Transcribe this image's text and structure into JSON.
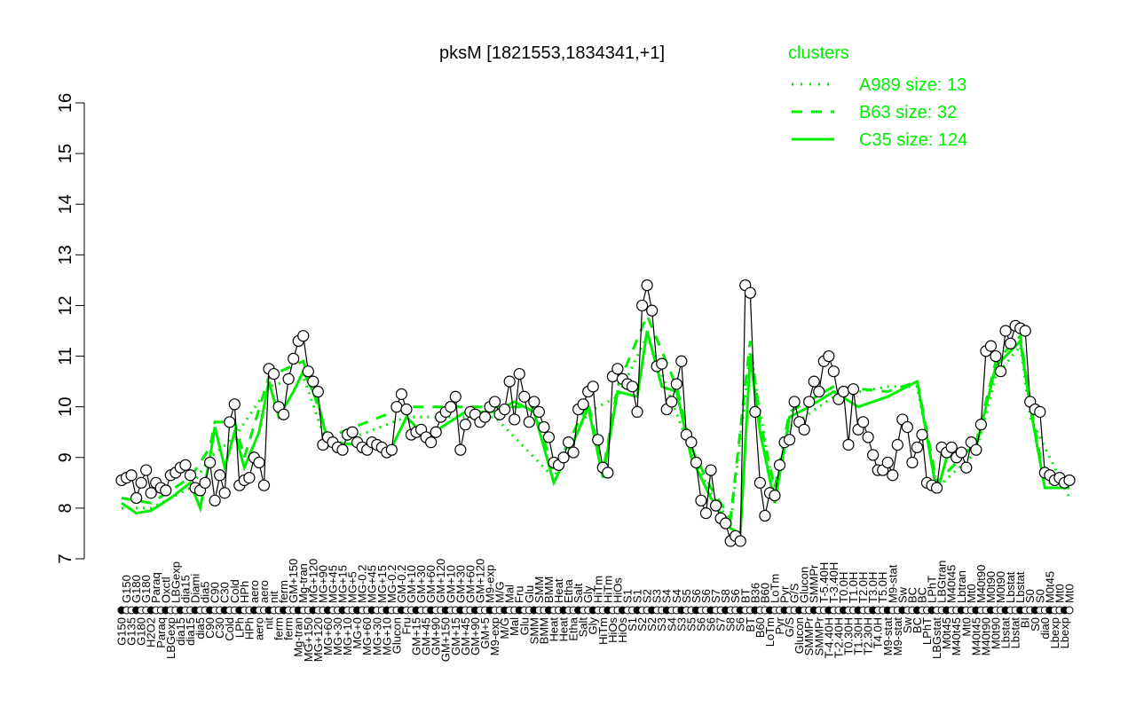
{
  "chart_data": {
    "type": "line",
    "title": "pksM [1821553,1834341,+1]",
    "ylim": [
      7,
      16
    ],
    "yticks": [
      7,
      8,
      9,
      10,
      11,
      12,
      13,
      14,
      15,
      16
    ],
    "grid": false,
    "legend": {
      "title": "clusters",
      "placement": "top-right",
      "color": "#00ee00",
      "entries": [
        {
          "label": "A989 size: 13",
          "style": "dotted"
        },
        {
          "label": "B63 size: 32",
          "style": "dashed"
        },
        {
          "label": "C35 size: 124",
          "style": "solid"
        }
      ]
    },
    "points": [
      [
        "G150",
        8.55
      ],
      [
        "G150",
        8.6
      ],
      [
        "G135",
        8.65
      ],
      [
        "G180",
        8.2
      ],
      [
        "G180",
        8.5
      ],
      [
        "G180",
        8.75
      ],
      [
        "H2O2",
        8.3
      ],
      [
        "Paraq",
        8.5
      ],
      [
        "Paraq",
        8.4
      ],
      [
        "Oxctl",
        8.35
      ],
      [
        "LBGexp",
        8.65
      ],
      [
        "LBGexp",
        8.7
      ],
      [
        "dia15",
        8.8
      ],
      [
        "dia15",
        8.85
      ],
      [
        "dia15",
        8.65
      ],
      [
        "Diami",
        8.4
      ],
      [
        "dia5",
        8.35
      ],
      [
        "dia5",
        8.5
      ],
      [
        "C90",
        8.9
      ],
      [
        "C90",
        8.15
      ],
      [
        "C30",
        8.65
      ],
      [
        "C30",
        8.3
      ],
      [
        "Cold",
        9.7
      ],
      [
        "Cold",
        10.05
      ],
      [
        "LPh",
        8.45
      ],
      [
        "HPh",
        8.55
      ],
      [
        "HPh",
        8.6
      ],
      [
        "aero",
        9.0
      ],
      [
        "aero",
        8.9
      ],
      [
        "aero",
        8.45
      ],
      [
        "nit",
        10.75
      ],
      [
        "nit",
        10.65
      ],
      [
        "ferm",
        10.0
      ],
      [
        "ferm",
        9.85
      ],
      [
        "ferm",
        10.55
      ],
      [
        "GM+150",
        10.95
      ],
      [
        "Mg-tran",
        11.3
      ],
      [
        "Mg-tran",
        11.4
      ],
      [
        "MG+150",
        10.7
      ],
      [
        "MG+120",
        10.5
      ],
      [
        "MG+120",
        10.3
      ],
      [
        "MG+90",
        9.25
      ],
      [
        "MG+60",
        9.4
      ],
      [
        "MG+45",
        9.3
      ],
      [
        "MG+30",
        9.2
      ],
      [
        "MG+15",
        9.15
      ],
      [
        "MG+10",
        9.45
      ],
      [
        "MG+5",
        9.5
      ],
      [
        "MG+0",
        9.3
      ],
      [
        "MG-0.2",
        9.2
      ],
      [
        "MG+60",
        9.15
      ],
      [
        "MG+45",
        9.3
      ],
      [
        "MG+30",
        9.25
      ],
      [
        "MG+15",
        9.2
      ],
      [
        "MG+10",
        9.1
      ],
      [
        "MG-0.2",
        9.15
      ],
      [
        "Glucon",
        10.0
      ],
      [
        "GM-0.2",
        10.25
      ],
      [
        "Fru",
        9.95
      ],
      [
        "GM+10",
        9.45
      ],
      [
        "GM+15",
        9.5
      ],
      [
        "GM+30",
        9.55
      ],
      [
        "GM+45",
        9.4
      ],
      [
        "GM+60",
        9.3
      ],
      [
        "GM+90",
        9.5
      ],
      [
        "GM+120",
        9.8
      ],
      [
        "GM+150",
        9.9
      ],
      [
        "GM+10",
        10.0
      ],
      [
        "GM+15",
        10.2
      ],
      [
        "GM+30",
        9.15
      ],
      [
        "GM+45",
        9.65
      ],
      [
        "GM+60",
        9.9
      ],
      [
        "GM+90",
        9.85
      ],
      [
        "GM+120",
        9.7
      ],
      [
        "GM+5",
        9.8
      ],
      [
        "M9-exp",
        10.0
      ],
      [
        "M9-exp",
        10.1
      ],
      [
        "M/G",
        9.85
      ],
      [
        "M/G",
        9.95
      ],
      [
        "Mal",
        10.5
      ],
      [
        "Mal",
        9.75
      ],
      [
        "Fru",
        10.65
      ],
      [
        "Glu",
        10.2
      ],
      [
        "Glu",
        9.7
      ],
      [
        "SMM",
        10.1
      ],
      [
        "SMM",
        9.9
      ],
      [
        "BMM",
        9.6
      ],
      [
        "BMM",
        9.4
      ],
      [
        "Heat",
        8.9
      ],
      [
        "Heat",
        8.85
      ],
      [
        "Heat",
        9.0
      ],
      [
        "Etha",
        9.3
      ],
      [
        "Etha",
        9.1
      ],
      [
        "Salt",
        9.95
      ],
      [
        "Salt",
        10.05
      ],
      [
        "Gly",
        10.3
      ],
      [
        "Gly",
        10.4
      ],
      [
        "HiTm",
        9.35
      ],
      [
        "HiTm",
        8.8
      ],
      [
        "HiTm",
        8.7
      ],
      [
        "HiOs",
        10.6
      ],
      [
        "HiOs",
        10.75
      ],
      [
        "HiOs",
        10.55
      ],
      [
        "S1",
        10.45
      ],
      [
        "S1",
        10.4
      ],
      [
        "S1",
        9.9
      ],
      [
        "S2",
        12.0
      ],
      [
        "S2",
        12.4
      ],
      [
        "S2",
        11.9
      ],
      [
        "S3",
        10.8
      ],
      [
        "S3",
        10.85
      ],
      [
        "S4",
        9.95
      ],
      [
        "S4",
        10.1
      ],
      [
        "S4",
        10.45
      ],
      [
        "S3",
        10.9
      ],
      [
        "S5",
        9.45
      ],
      [
        "S5",
        9.3
      ],
      [
        "S6",
        8.9
      ],
      [
        "S6",
        8.15
      ],
      [
        "S6",
        7.9
      ],
      [
        "S6",
        8.75
      ],
      [
        "S7",
        8.05
      ],
      [
        "S7",
        7.8
      ],
      [
        "S8",
        7.7
      ],
      [
        "S8",
        7.35
      ],
      [
        "S6",
        7.45
      ],
      [
        "S6",
        7.35
      ],
      [
        "BT",
        12.4
      ],
      [
        "BT",
        12.25
      ],
      [
        "B36",
        9.9
      ],
      [
        "B60",
        8.5
      ],
      [
        "B60",
        7.85
      ],
      [
        "LoTm",
        8.3
      ],
      [
        "LoTm",
        8.25
      ],
      [
        "Pyr",
        8.85
      ],
      [
        "Pyr",
        9.3
      ],
      [
        "G/S",
        9.35
      ],
      [
        "G/S",
        10.1
      ],
      [
        "Glucon",
        9.7
      ],
      [
        "Glucon",
        9.55
      ],
      [
        "SMMPr",
        10.1
      ],
      [
        "SMMPr",
        10.5
      ],
      [
        "SMMPr",
        10.3
      ],
      [
        "T-5.40H",
        10.9
      ],
      [
        "T-4.40H",
        11.0
      ],
      [
        "T-3.40H",
        10.7
      ],
      [
        "T-2.40H",
        10.15
      ],
      [
        "T0.0H",
        10.3
      ],
      [
        "T0.30H",
        9.25
      ],
      [
        "T1.0H",
        10.35
      ],
      [
        "T1.30H",
        9.55
      ],
      [
        "T2.0H",
        9.7
      ],
      [
        "T2.30H",
        9.4
      ],
      [
        "T3.0H",
        9.05
      ],
      [
        "T4.0H",
        8.75
      ],
      [
        "T5.0H",
        8.75
      ],
      [
        "M9-stat",
        8.9
      ],
      [
        "M9-stat",
        8.65
      ],
      [
        "M9-stat",
        9.25
      ],
      [
        "Sw",
        9.75
      ],
      [
        "Sw",
        9.6
      ],
      [
        "BC",
        8.9
      ],
      [
        "BC",
        9.2
      ],
      [
        "BC",
        9.45
      ],
      [
        "LPhT",
        8.5
      ],
      [
        "LPhT",
        8.45
      ],
      [
        "LBGstat",
        8.4
      ],
      [
        "LBGtran",
        9.2
      ],
      [
        "M0t45",
        9.1
      ],
      [
        "M40t45",
        9.2
      ],
      [
        "M40t45",
        9.0
      ],
      [
        "Lbtran",
        9.1
      ],
      [
        "Mt0",
        8.8
      ],
      [
        "Mt0",
        9.3
      ],
      [
        "M40t45",
        9.15
      ],
      [
        "M40t90",
        9.65
      ],
      [
        "M40t90",
        11.1
      ],
      [
        "M0t90",
        11.2
      ],
      [
        "M0t90",
        11.0
      ],
      [
        "M0t90",
        10.7
      ],
      [
        "Lbstat",
        11.5
      ],
      [
        "Lbstat",
        11.25
      ],
      [
        "Lbstat",
        11.6
      ],
      [
        "Lbstat",
        11.55
      ],
      [
        "BI",
        11.5
      ],
      [
        "S0",
        10.1
      ],
      [
        "S0",
        9.95
      ],
      [
        "S0",
        9.9
      ],
      [
        "dia0",
        8.7
      ],
      [
        "M0t45",
        8.65
      ],
      [
        "Lbexp",
        8.55
      ],
      [
        "Mt0",
        8.6
      ],
      [
        "Lbexp",
        8.5
      ],
      [
        "Mt0",
        8.55
      ]
    ],
    "cluster_lines": {
      "C35": [
        [
          0,
          8.1
        ],
        [
          3,
          7.9
        ],
        [
          6,
          7.95
        ],
        [
          10,
          8.2
        ],
        [
          14,
          8.5
        ],
        [
          16,
          8.0
        ],
        [
          18,
          9.0
        ],
        [
          19,
          9.6
        ],
        [
          21,
          8.8
        ],
        [
          23,
          9.5
        ],
        [
          25,
          8.8
        ],
        [
          28,
          9.5
        ],
        [
          30,
          10.5
        ],
        [
          32,
          9.8
        ],
        [
          35,
          10.3
        ],
        [
          37,
          10.7
        ],
        [
          40,
          10.1
        ],
        [
          42,
          9.3
        ],
        [
          55,
          9.2
        ],
        [
          58,
          9.8
        ],
        [
          62,
          9.4
        ],
        [
          70,
          9.9
        ],
        [
          76,
          9.9
        ],
        [
          80,
          10.1
        ],
        [
          84,
          9.9
        ],
        [
          88,
          8.5
        ],
        [
          92,
          9.3
        ],
        [
          95,
          10.0
        ],
        [
          98,
          8.6
        ],
        [
          101,
          10.3
        ],
        [
          105,
          10.2
        ],
        [
          107,
          11.5
        ],
        [
          110,
          10.4
        ],
        [
          113,
          10.3
        ],
        [
          116,
          9.0
        ],
        [
          120,
          8.2
        ],
        [
          124,
          7.6
        ],
        [
          126,
          7.5
        ],
        [
          128,
          11.0
        ],
        [
          130,
          9.5
        ],
        [
          133,
          8.1
        ],
        [
          136,
          9.8
        ],
        [
          140,
          10.0
        ],
        [
          145,
          10.3
        ],
        [
          150,
          10.0
        ],
        [
          156,
          10.2
        ],
        [
          162,
          10.5
        ],
        [
          166,
          8.3
        ],
        [
          168,
          9.0
        ],
        [
          174,
          9.2
        ],
        [
          178,
          10.8
        ],
        [
          183,
          11.3
        ],
        [
          185,
          10.0
        ],
        [
          188,
          8.4
        ],
        [
          193,
          8.4
        ]
      ],
      "B63": [
        [
          0,
          8.2
        ],
        [
          6,
          8.1
        ],
        [
          14,
          8.6
        ],
        [
          18,
          9.2
        ],
        [
          19,
          9.7
        ],
        [
          23,
          9.7
        ],
        [
          25,
          9.0
        ],
        [
          30,
          10.6
        ],
        [
          37,
          10.9
        ],
        [
          42,
          9.4
        ],
        [
          58,
          10.0
        ],
        [
          76,
          10.0
        ],
        [
          84,
          10.0
        ],
        [
          88,
          8.7
        ],
        [
          95,
          10.1
        ],
        [
          98,
          8.7
        ],
        [
          101,
          10.4
        ],
        [
          107,
          11.8
        ],
        [
          113,
          10.4
        ],
        [
          116,
          9.2
        ],
        [
          120,
          8.4
        ],
        [
          124,
          7.8
        ],
        [
          128,
          11.3
        ],
        [
          130,
          9.7
        ],
        [
          133,
          8.4
        ],
        [
          136,
          9.9
        ],
        [
          145,
          10.4
        ],
        [
          156,
          10.3
        ],
        [
          162,
          10.5
        ],
        [
          166,
          8.5
        ],
        [
          174,
          9.3
        ],
        [
          178,
          10.9
        ],
        [
          183,
          11.4
        ],
        [
          185,
          10.1
        ],
        [
          188,
          8.5
        ],
        [
          193,
          8.5
        ]
      ],
      "A989": [
        [
          0,
          8.0
        ],
        [
          6,
          8.0
        ],
        [
          14,
          8.4
        ],
        [
          18,
          9.0
        ],
        [
          23,
          9.4
        ],
        [
          30,
          10.4
        ],
        [
          37,
          10.6
        ],
        [
          42,
          9.2
        ],
        [
          58,
          9.8
        ],
        [
          76,
          9.8
        ],
        [
          88,
          8.6
        ],
        [
          95,
          9.9
        ],
        [
          101,
          10.2
        ],
        [
          107,
          11.4
        ],
        [
          116,
          9.1
        ],
        [
          120,
          8.3
        ],
        [
          124,
          7.7
        ],
        [
          128,
          11.1
        ],
        [
          133,
          8.2
        ],
        [
          136,
          9.6
        ],
        [
          145,
          10.2
        ],
        [
          156,
          10.4
        ],
        [
          162,
          10.4
        ],
        [
          166,
          8.4
        ],
        [
          174,
          9.1
        ],
        [
          178,
          10.6
        ],
        [
          183,
          11.2
        ],
        [
          185,
          9.8
        ],
        [
          193,
          8.2
        ]
      ]
    }
  }
}
